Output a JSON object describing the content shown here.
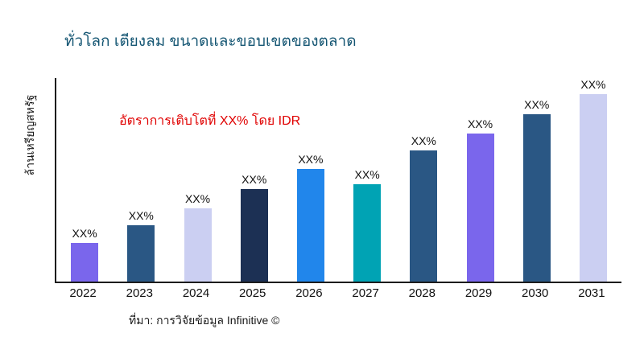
{
  "header": {
    "title": "ทั่วโลก เตียงลม ขนาดและขอบเขตของตลาด"
  },
  "annotation": {
    "growth_text": "อัตราการเติบโตที่ XX% โดย IDR",
    "color": "#e00000"
  },
  "axes": {
    "ylabel": "ล้านเหรียญสหรัฐ"
  },
  "footer": {
    "source": "ที่มา: การวิจัยข้อมูล Infinitive ©"
  },
  "chart_data": {
    "type": "bar",
    "title": "ทั่วโลก เตียงลม ขนาดและขอบเขตของตลาด",
    "xlabel": "",
    "ylabel": "ล้านเหรียญสหรัฐ",
    "categories": [
      "2022",
      "2023",
      "2024",
      "2025",
      "2026",
      "2027",
      "2028",
      "2029",
      "2030",
      "2031"
    ],
    "values": [
      47,
      69,
      90,
      114,
      138,
      120,
      161,
      182,
      206,
      230
    ],
    "value_labels": [
      "XX%",
      "XX%",
      "XX%",
      "XX%",
      "XX%",
      "XX%",
      "XX%",
      "XX%",
      "XX%",
      "XX%"
    ],
    "bar_colors": [
      "#7a66ec",
      "#2a5784",
      "#cbcff2",
      "#1c3054",
      "#2186eb",
      "#00a3b4",
      "#2a5784",
      "#7a66ec",
      "#2a5784",
      "#cbcff2"
    ],
    "ylim": [
      0,
      250
    ],
    "values_note": "bar heights are relative estimated units; labels show XX% placeholders",
    "grid": false,
    "legend": "none",
    "annotation": "อัตราการเติบโตที่ XX% โดย IDR"
  }
}
